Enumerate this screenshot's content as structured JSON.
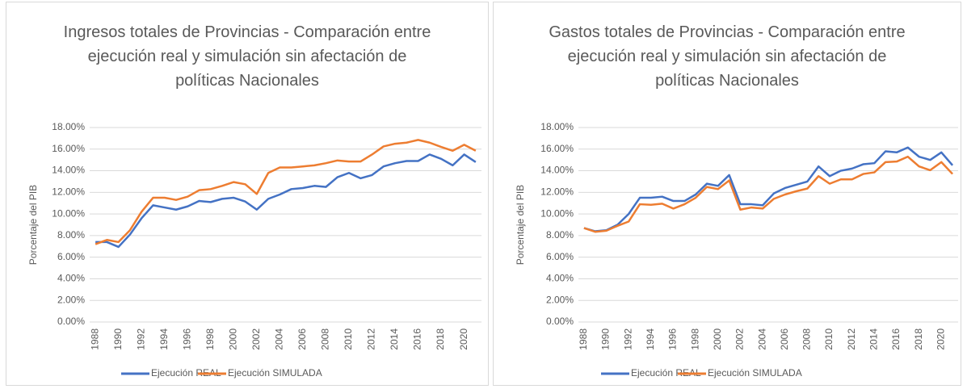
{
  "chart_data": [
    {
      "type": "line",
      "title": "Ingresos totales de Provincias -  Comparación entre ejecución real y simulación sin afectación de políticas Nacionales",
      "y_label": "Porcentaje del PIB",
      "categories": [
        "1988",
        null,
        "1990",
        null,
        "1992",
        null,
        "1994",
        null,
        "1996",
        null,
        "1998",
        null,
        "2000",
        null,
        "2002",
        null,
        "2004",
        null,
        "2006",
        null,
        "2008",
        null,
        "2010",
        null,
        "2012",
        null,
        "2014",
        null,
        "2016",
        null,
        "2018",
        null,
        "2020",
        null
      ],
      "series": [
        {
          "name": "Ejecución REAL",
          "color": "#4472c4",
          "values": [
            7.4,
            7.4,
            6.95,
            8.1,
            9.6,
            10.8,
            10.6,
            10.4,
            10.7,
            11.2,
            11.1,
            11.4,
            11.5,
            11.15,
            10.4,
            11.4,
            11.8,
            12.3,
            12.4,
            12.6,
            12.5,
            13.4,
            13.8,
            13.3,
            13.6,
            14.4,
            14.7,
            14.9,
            14.9,
            15.5,
            15.1,
            14.5,
            15.5,
            14.8
          ]
        },
        {
          "name": "Ejecución SIMULADA",
          "color": "#ed7d31",
          "values": [
            7.2,
            7.6,
            7.4,
            8.5,
            10.2,
            11.5,
            11.5,
            11.3,
            11.6,
            12.2,
            12.3,
            12.6,
            12.95,
            12.75,
            11.85,
            13.8,
            14.3,
            14.3,
            14.4,
            14.5,
            14.7,
            14.95,
            14.85,
            14.85,
            15.5,
            16.25,
            16.5,
            16.6,
            16.85,
            16.6,
            16.2,
            15.85,
            16.4,
            15.85
          ]
        }
      ],
      "ylim": [
        0,
        18
      ],
      "yticks": [
        {
          "value": 0,
          "label": "0.00%"
        },
        {
          "value": 2,
          "label": "2.00%"
        },
        {
          "value": 4,
          "label": "4.00%"
        },
        {
          "value": 6,
          "label": "6.00%"
        },
        {
          "value": 8,
          "label": "8.00%"
        },
        {
          "value": 10,
          "label": "10.00%"
        },
        {
          "value": 12,
          "label": "12.00%"
        },
        {
          "value": 14,
          "label": "14.00%"
        },
        {
          "value": 16,
          "label": "16.00%"
        },
        {
          "value": 18,
          "label": "18.00%"
        }
      ],
      "grid": true,
      "legend": "bottom"
    },
    {
      "type": "line",
      "title": "Gastos totales de Provincias -  Comparación entre ejecución real y simulación sin afectación de políticas Nacionales",
      "y_label": "Porcentaje del PIB",
      "categories": [
        "1988",
        null,
        "1990",
        null,
        "1992",
        null,
        "1994",
        null,
        "1996",
        null,
        "1998",
        null,
        "2000",
        null,
        "2002",
        null,
        "2004",
        null,
        "2006",
        null,
        "2008",
        null,
        "2010",
        null,
        "2012",
        null,
        "2014",
        null,
        "2016",
        null,
        "2018",
        null,
        "2020",
        null
      ],
      "series": [
        {
          "name": "Ejecución REAL",
          "color": "#4472c4",
          "values": [
            8.7,
            8.4,
            8.5,
            9.0,
            10.0,
            11.5,
            11.5,
            11.6,
            11.2,
            11.2,
            11.8,
            12.8,
            12.6,
            13.6,
            10.9,
            10.9,
            10.8,
            11.9,
            12.4,
            12.7,
            13.0,
            14.4,
            13.5,
            14.0,
            14.2,
            14.6,
            14.7,
            15.8,
            15.7,
            16.15,
            15.3,
            15.0,
            15.7,
            14.5
          ]
        },
        {
          "name": "Ejecución SIMULADA",
          "color": "#ed7d31",
          "values": [
            8.7,
            8.35,
            8.45,
            8.9,
            9.3,
            10.9,
            10.85,
            10.95,
            10.5,
            10.9,
            11.5,
            12.5,
            12.3,
            13.1,
            10.4,
            10.6,
            10.5,
            11.4,
            11.8,
            12.1,
            12.35,
            13.5,
            12.8,
            13.2,
            13.2,
            13.7,
            13.85,
            14.8,
            14.85,
            15.3,
            14.4,
            14.05,
            14.8,
            13.7
          ]
        }
      ],
      "ylim": [
        0,
        18
      ],
      "yticks": [
        {
          "value": 0,
          "label": "0.00%"
        },
        {
          "value": 2,
          "label": "2.00%"
        },
        {
          "value": 4,
          "label": "4.00%"
        },
        {
          "value": 6,
          "label": "6.00%"
        },
        {
          "value": 8,
          "label": "8.00%"
        },
        {
          "value": 10,
          "label": "10.00%"
        },
        {
          "value": 12,
          "label": "12.00%"
        },
        {
          "value": 14,
          "label": "14.00%"
        },
        {
          "value": 16,
          "label": "16.00%"
        },
        {
          "value": 18,
          "label": "18.00%"
        }
      ],
      "grid": true,
      "legend": "bottom"
    }
  ]
}
